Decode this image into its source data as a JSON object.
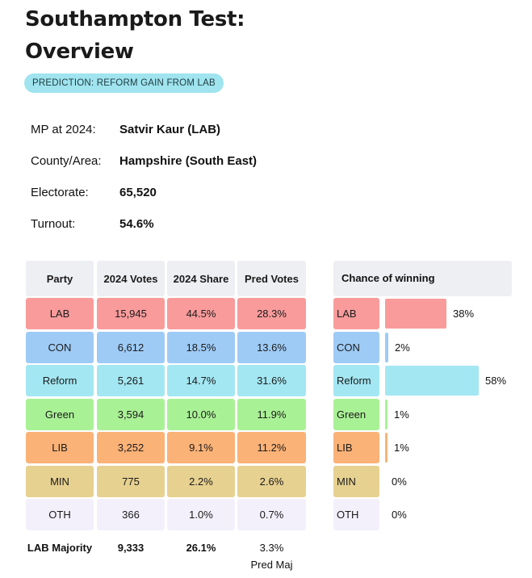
{
  "title": {
    "line1": "Southampton Test:",
    "line2": "Overview"
  },
  "prediction": "PREDICTION: REFORM GAIN FROM LAB",
  "info": [
    {
      "label": "MP at 2024:",
      "value": "Satvir Kaur  (LAB)"
    },
    {
      "label": "County/Area:",
      "value": "Hampshire (South East)"
    },
    {
      "label": "Electorate:",
      "value": "65,520"
    },
    {
      "label": "Turnout:",
      "value": "54.6%"
    }
  ],
  "table": {
    "headers": [
      "Party",
      "2024 Votes",
      "2024 Share",
      "Pred Votes"
    ],
    "rows": [
      {
        "party": "LAB",
        "votes": "15,945",
        "share": "44.5%",
        "pred": "28.3%",
        "color": "#f99b9b"
      },
      {
        "party": "CON",
        "votes": "6,612",
        "share": "18.5%",
        "pred": "13.6%",
        "color": "#9ecbf6"
      },
      {
        "party": "Reform",
        "votes": "5,261",
        "share": "14.7%",
        "pred": "31.6%",
        "color": "#a3e7f2"
      },
      {
        "party": "Green",
        "votes": "3,594",
        "share": "10.0%",
        "pred": "11.9%",
        "color": "#a9f195"
      },
      {
        "party": "LIB",
        "votes": "3,252",
        "share": "9.1%",
        "pred": "11.2%",
        "color": "#fbb277"
      },
      {
        "party": "MIN",
        "votes": "775",
        "share": "2.2%",
        "pred": "2.6%",
        "color": "#e7d190"
      },
      {
        "party": "OTH",
        "votes": "366",
        "share": "1.0%",
        "pred": "0.7%",
        "color": "#f3f0fb"
      }
    ],
    "footer": {
      "party_label": "LAB Majority",
      "votes": "9,333",
      "share": "26.1%",
      "pred": "3.3%",
      "pred_label": "Pred Maj"
    }
  },
  "chance": {
    "header": "Chance of winning",
    "rows": [
      {
        "party": "LAB",
        "pct": "38%",
        "value": 38,
        "color": "#f99b9b"
      },
      {
        "party": "CON",
        "pct": "2%",
        "value": 2,
        "color": "#9ecbf6"
      },
      {
        "party": "Reform",
        "pct": "58%",
        "value": 58,
        "color": "#a3e7f2"
      },
      {
        "party": "Green",
        "pct": "1%",
        "value": 1,
        "color": "#a9f195"
      },
      {
        "party": "LIB",
        "pct": "1%",
        "value": 1,
        "color": "#fbb277"
      },
      {
        "party": "MIN",
        "pct": "0%",
        "value": 0,
        "color": "#e7d190"
      },
      {
        "party": "OTH",
        "pct": "0%",
        "value": 0,
        "color": "#f3f0fb"
      }
    ]
  }
}
